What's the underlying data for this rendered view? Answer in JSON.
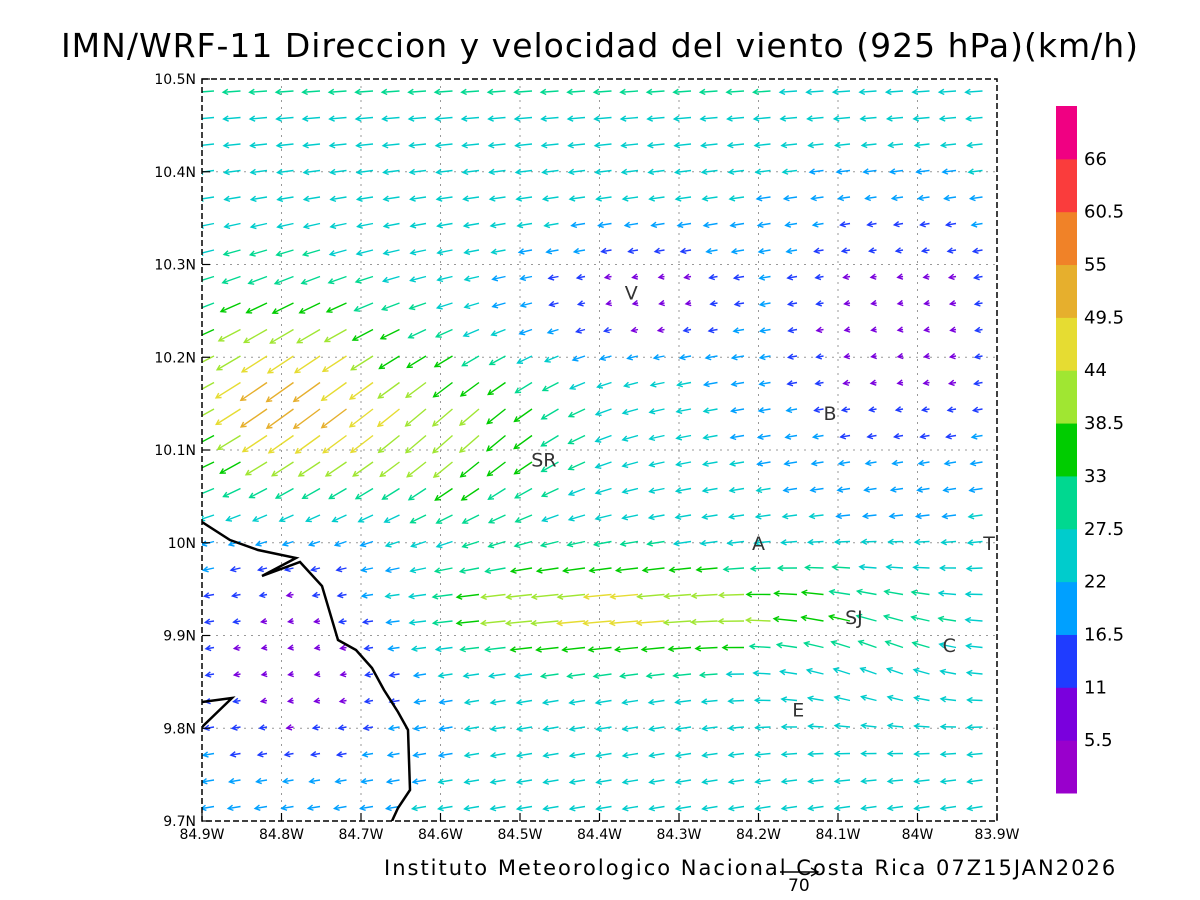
{
  "title": "IMN/WRF-11 Direccion y velocidad del viento (925 hPa)(km/h)",
  "credit": "Instituto Meteorologico Nacional Costa Rica 07Z15JAN2026",
  "reference_vector": {
    "label": "70",
    "magnitude_kmh": 70
  },
  "map": {
    "lon_range": [
      -84.9,
      -83.9
    ],
    "lat_range": [
      9.7,
      10.5
    ],
    "grid": true,
    "x_ticks": [
      "84.9W",
      "84.8W",
      "84.7W",
      "84.6W",
      "84.5W",
      "84.4W",
      "84.3W",
      "84.2W",
      "84.1W",
      "84W",
      "83.9W"
    ],
    "y_ticks": [
      "10.5N",
      "10.4N",
      "10.3N",
      "10.2N",
      "10.1N",
      "10N",
      "9.9N",
      "9.8N",
      "9.7N"
    ],
    "cities": [
      {
        "label": "V",
        "lon": -84.36,
        "lat": 10.27
      },
      {
        "label": "SR",
        "lon": -84.47,
        "lat": 10.09
      },
      {
        "label": "B",
        "lon": -84.11,
        "lat": 10.14
      },
      {
        "label": "A",
        "lon": -84.2,
        "lat": 10.0
      },
      {
        "label": "SJ",
        "lon": -84.08,
        "lat": 9.92
      },
      {
        "label": "C",
        "lon": -83.96,
        "lat": 9.89
      },
      {
        "label": "E",
        "lon": -84.15,
        "lat": 9.82
      },
      {
        "label": "T",
        "lon": -83.91,
        "lat": 10.0
      }
    ]
  },
  "colorbar": {
    "labels": [
      "5.5",
      "11",
      "16.5",
      "22",
      "27.5",
      "33",
      "38.5",
      "44",
      "49.5",
      "55",
      "60.5",
      "66"
    ],
    "colors": [
      "#9900cc",
      "#7a00dd",
      "#1f3cff",
      "#00a0ff",
      "#00cccc",
      "#00d890",
      "#00cc00",
      "#a0e632",
      "#e6dc32",
      "#e6af2d",
      "#f08228",
      "#fa3c3c",
      "#f00082"
    ]
  }
}
